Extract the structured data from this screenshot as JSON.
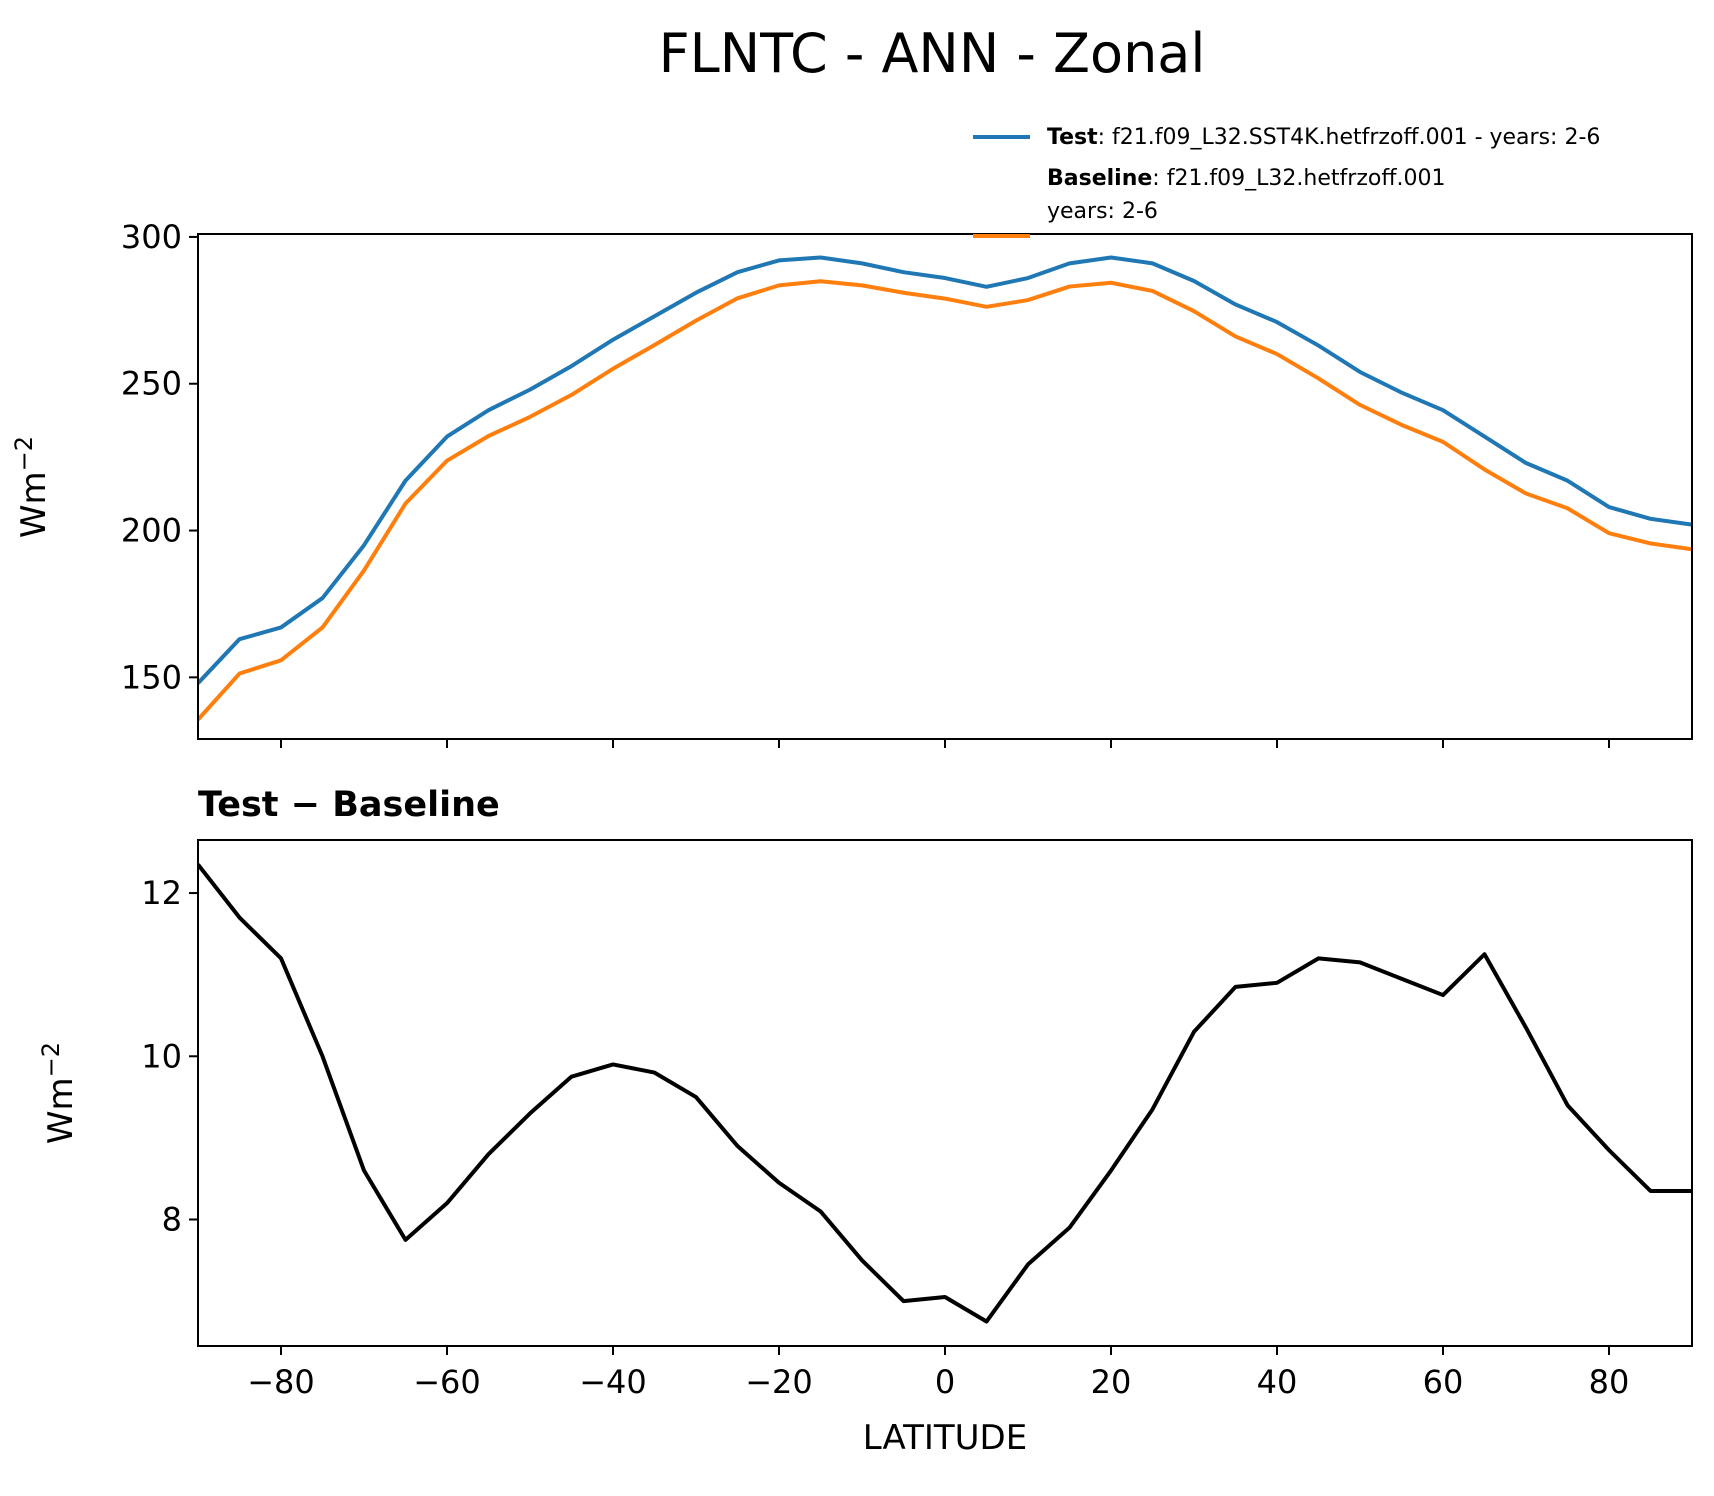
{
  "title": "FLNTC - ANN - Zonal",
  "chart_data": [
    {
      "type": "line",
      "ylabel": "Wm",
      "ylabel_sup": "−2",
      "x": [
        -90,
        -85,
        -80,
        -75,
        -70,
        -65,
        -60,
        -55,
        -50,
        -45,
        -40,
        -35,
        -30,
        -25,
        -20,
        -15,
        -10,
        -5,
        0,
        5,
        10,
        15,
        20,
        25,
        30,
        35,
        40,
        45,
        50,
        55,
        60,
        65,
        70,
        75,
        80,
        85,
        90
      ],
      "series": [
        {
          "name": "Test",
          "description": [
            ": f21.f09_L32.SST4K.hetfrzoff.001 - years: 2-6"
          ],
          "color": "#1f77b4",
          "values": [
            148,
            163,
            167,
            177,
            195,
            217,
            232,
            241,
            248,
            256,
            265,
            273,
            281,
            288,
            292,
            293,
            291,
            288,
            286,
            283,
            286,
            291,
            293,
            291,
            285,
            277,
            271,
            263,
            254,
            247,
            241,
            232,
            223,
            217,
            208,
            204,
            202
          ]
        },
        {
          "name": "Baseline",
          "description": [
            ": f21.f09_L32.hetfrzoff.001",
            "years: 2-6"
          ],
          "color": "#ff7f0e",
          "values": [
            135.6,
            151.3,
            155.8,
            167,
            186.4,
            209.2,
            223.8,
            232.2,
            238.7,
            246.2,
            255.1,
            263.2,
            271.5,
            279.1,
            283.5,
            284.9,
            283.5,
            281,
            279,
            276.2,
            278.5,
            283.1,
            284.4,
            281.6,
            274.7,
            266.1,
            260.1,
            251.8,
            242.8,
            236,
            230.2,
            220.8,
            212.6,
            207.6,
            199.1,
            195.6,
            193.6
          ]
        }
      ],
      "xlim": [
        -90,
        90
      ],
      "xticks": [
        -80,
        -60,
        -40,
        -20,
        0,
        20,
        40,
        60,
        80
      ],
      "ylim": [
        129,
        301
      ],
      "yticks": [
        150,
        200,
        250,
        300
      ],
      "legend": "upper right"
    },
    {
      "type": "line",
      "title": "Test − Baseline",
      "xlabel": "LATITUDE",
      "ylabel": "Wm",
      "ylabel_sup": "−2",
      "x": [
        -90,
        -85,
        -80,
        -75,
        -70,
        -65,
        -60,
        -55,
        -50,
        -45,
        -40,
        -35,
        -30,
        -25,
        -20,
        -15,
        -10,
        -5,
        0,
        5,
        10,
        15,
        20,
        25,
        30,
        35,
        40,
        45,
        50,
        55,
        60,
        65,
        70,
        75,
        80,
        85,
        90
      ],
      "series": [
        {
          "color": "#000000",
          "values": [
            12.35,
            11.7,
            11.2,
            10.0,
            8.6,
            7.75,
            8.2,
            8.8,
            9.3,
            9.75,
            9.9,
            9.8,
            9.5,
            8.9,
            8.45,
            8.1,
            7.5,
            7.0,
            7.05,
            6.75,
            7.45,
            7.9,
            8.6,
            9.35,
            10.3,
            10.85,
            10.9,
            11.2,
            11.15,
            10.95,
            10.75,
            11.25,
            10.35,
            9.4,
            8.85,
            8.35,
            8.35
          ]
        }
      ],
      "xlim": [
        -90,
        90
      ],
      "xticks": [
        {
          "value": -80,
          "label": "−80"
        },
        {
          "value": -60,
          "label": "−60"
        },
        {
          "value": -40,
          "label": "−40"
        },
        {
          "value": -20,
          "label": "−20"
        },
        0,
        20,
        40,
        60,
        80
      ],
      "ylim": [
        6.45,
        12.65
      ],
      "yticks": [
        8,
        10,
        12
      ]
    }
  ]
}
